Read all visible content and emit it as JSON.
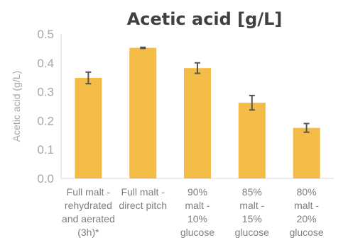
{
  "chart_data": {
    "type": "bar",
    "title": "Acetic acid [g/L]",
    "ylabel": "Acetic acid (g/L)",
    "xlabel": "",
    "ylim": [
      0,
      0.5
    ],
    "yticks": [
      "0.0",
      "0.1",
      "0.2",
      "0.3",
      "0.4",
      "0.5"
    ],
    "categories": [
      [
        "Full malt -",
        "rehydrated",
        "and aerated",
        "(3h)*"
      ],
      [
        "Full malt -",
        "direct pitch"
      ],
      [
        "90%",
        "malt -",
        "10%",
        "glucose"
      ],
      [
        "85%",
        "malt -",
        "15%",
        "glucose"
      ],
      [
        "80%",
        "malt -",
        "20%",
        "glucose"
      ]
    ],
    "values": [
      0.348,
      0.452,
      0.382,
      0.262,
      0.175
    ],
    "errors": [
      0.02,
      0.002,
      0.018,
      0.025,
      0.015
    ],
    "bar_color": "#f4bc46",
    "error_color": "#555555",
    "grid": false,
    "legend": "none"
  }
}
